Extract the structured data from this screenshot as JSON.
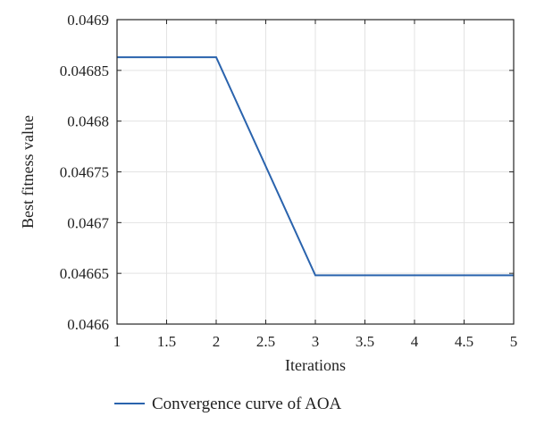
{
  "chart_data": {
    "type": "line",
    "title": "",
    "xlabel": "Iterations",
    "ylabel": "Best fitness value",
    "xlim": [
      1,
      5
    ],
    "ylim": [
      0.0466,
      0.0469
    ],
    "x_ticks": [
      {
        "value": 1,
        "label": "1"
      },
      {
        "value": 1.5,
        "label": "1.5"
      },
      {
        "value": 2,
        "label": "2"
      },
      {
        "value": 2.5,
        "label": "2.5"
      },
      {
        "value": 3,
        "label": "3"
      },
      {
        "value": 3.5,
        "label": "3.5"
      },
      {
        "value": 4,
        "label": "4"
      },
      {
        "value": 4.5,
        "label": "4.5"
      },
      {
        "value": 5,
        "label": "5"
      }
    ],
    "y_ticks": [
      {
        "value": 0.0466,
        "label": "0.0466"
      },
      {
        "value": 0.04665,
        "label": "0.04665"
      },
      {
        "value": 0.0467,
        "label": "0.0467"
      },
      {
        "value": 0.04675,
        "label": "0.04675"
      },
      {
        "value": 0.0468,
        "label": "0.0468"
      },
      {
        "value": 0.04685,
        "label": "0.04685"
      },
      {
        "value": 0.0469,
        "label": "0.0469"
      }
    ],
    "grid": true,
    "legend_position": "bottom",
    "series": [
      {
        "name": "Convergence curve of AOA",
        "color": "#2a63ad",
        "x": [
          1,
          2,
          3,
          4,
          5
        ],
        "y": [
          0.046863,
          0.046863,
          0.046648,
          0.046648,
          0.046648
        ]
      }
    ]
  }
}
